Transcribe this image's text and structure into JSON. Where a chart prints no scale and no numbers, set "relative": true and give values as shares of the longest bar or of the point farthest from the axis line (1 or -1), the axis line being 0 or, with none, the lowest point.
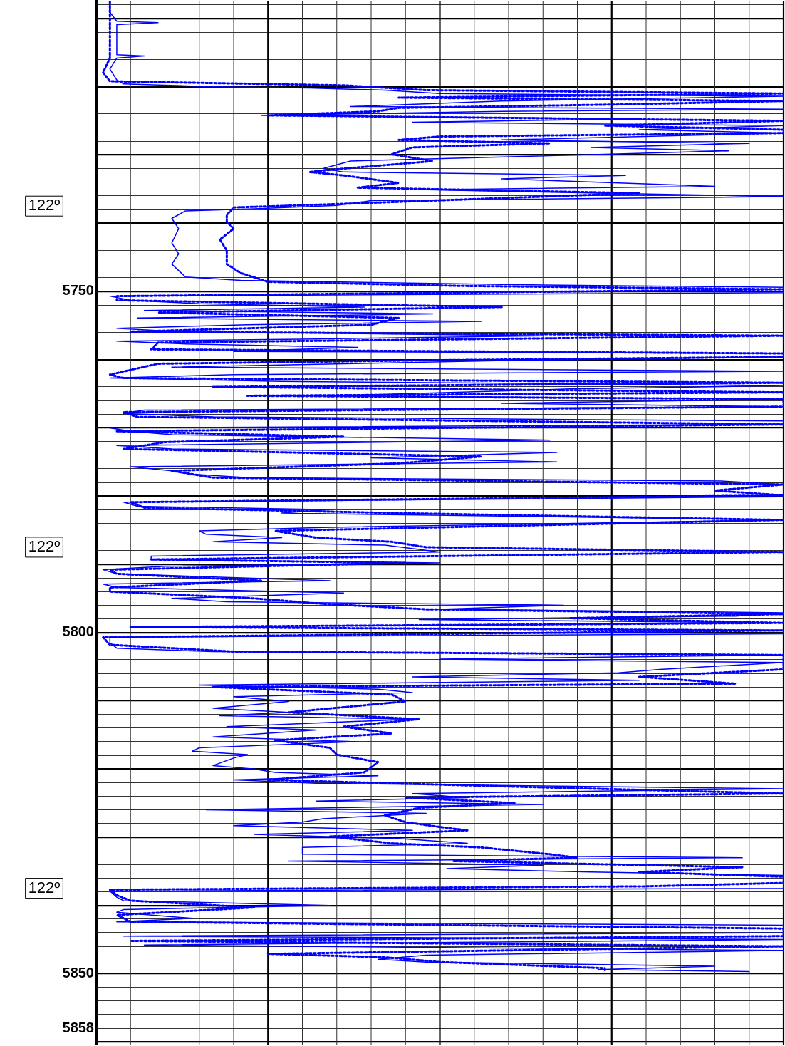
{
  "chart_data": {
    "type": "line",
    "orientation": "horizontal",
    "relative": true,
    "grid": true,
    "legend": false,
    "marker": "none",
    "tick_labels": "y",
    "ylim": [
      5860.4,
      5707.5
    ],
    "yticks": [
      {
        "value": 5708,
        "label": null
      },
      {
        "value": 5710,
        "label": null
      },
      {
        "value": 5712,
        "label": null
      },
      {
        "value": 5714,
        "label": null
      },
      {
        "value": 5716,
        "label": null
      },
      {
        "value": 5718,
        "label": null
      },
      {
        "value": 5720,
        "label": null
      },
      {
        "value": 5722,
        "label": null
      },
      {
        "value": 5724,
        "label": null
      },
      {
        "value": 5726,
        "label": null
      },
      {
        "value": 5728,
        "label": null
      },
      {
        "value": 5730,
        "label": null
      },
      {
        "value": 5732,
        "label": null
      },
      {
        "value": 5734,
        "label": null
      },
      {
        "value": 5736,
        "label": null
      },
      {
        "value": 5738,
        "label": null
      },
      {
        "value": 5740,
        "label": null
      },
      {
        "value": 5742,
        "label": null
      },
      {
        "value": 5744,
        "label": null
      },
      {
        "value": 5746,
        "label": null
      },
      {
        "value": 5748,
        "label": null
      },
      5750,
      {
        "value": 5752,
        "label": null
      },
      {
        "value": 5754,
        "label": null
      },
      {
        "value": 5756,
        "label": null
      },
      {
        "value": 5758,
        "label": null
      },
      {
        "value": 5760,
        "label": null
      },
      {
        "value": 5762,
        "label": null
      },
      {
        "value": 5764,
        "label": null
      },
      {
        "value": 5766,
        "label": null
      },
      {
        "value": 5768,
        "label": null
      },
      {
        "value": 5770,
        "label": null
      },
      {
        "value": 5772,
        "label": null
      },
      {
        "value": 5774,
        "label": null
      },
      {
        "value": 5776,
        "label": null
      },
      {
        "value": 5778,
        "label": null
      },
      {
        "value": 5780,
        "label": null
      },
      {
        "value": 5782,
        "label": null
      },
      {
        "value": 5784,
        "label": null
      },
      {
        "value": 5786,
        "label": null
      },
      {
        "value": 5788,
        "label": null
      },
      {
        "value": 5790,
        "label": null
      },
      {
        "value": 5792,
        "label": null
      },
      {
        "value": 5794,
        "label": null
      },
      {
        "value": 5796,
        "label": null
      },
      {
        "value": 5798,
        "label": null
      },
      5800,
      {
        "value": 5802,
        "label": null
      },
      {
        "value": 5804,
        "label": null
      },
      {
        "value": 5806,
        "label": null
      },
      {
        "value": 5808,
        "label": null
      },
      {
        "value": 5810,
        "label": null
      },
      {
        "value": 5812,
        "label": null
      },
      {
        "value": 5814,
        "label": null
      },
      {
        "value": 5816,
        "label": null
      },
      {
        "value": 5818,
        "label": null
      },
      {
        "value": 5820,
        "label": null
      },
      {
        "value": 5822,
        "label": null
      },
      {
        "value": 5824,
        "label": null
      },
      {
        "value": 5826,
        "label": null
      },
      {
        "value": 5828,
        "label": null
      },
      {
        "value": 5830,
        "label": null
      },
      {
        "value": 5832,
        "label": null
      },
      {
        "value": 5834,
        "label": null
      },
      {
        "value": 5836,
        "label": null
      },
      {
        "value": 5838,
        "label": null
      },
      {
        "value": 5840,
        "label": null
      },
      {
        "value": 5842,
        "label": null
      },
      {
        "value": 5844,
        "label": null
      },
      {
        "value": 5846,
        "label": null
      },
      {
        "value": 5848,
        "label": null
      },
      5850,
      {
        "value": 5852,
        "label": null
      },
      {
        "value": 5854,
        "label": null
      },
      {
        "value": 5856,
        "label": null
      },
      5858,
      {
        "value": 5860,
        "label": null
      }
    ],
    "annotations": [
      "122º",
      "122º",
      "122º"
    ],
    "series": [
      {
        "color": "#0000ff",
        "line_style": "solid",
        "x": [
          5707.5,
          5709.1,
          5710.4,
          5710.6,
          5710.9,
          5712.2,
          5713.8,
          5715.3,
          5715.5,
          5715.8,
          5717.4,
          5719.0,
          5719.6,
          5720.0,
          5720.2,
          5720.5,
          5721.0,
          5721.4,
          5722.1,
          5722.9,
          5723.3,
          5723.6,
          5724.2,
          5724.7,
          5725.2,
          5725.7,
          5726.3,
          5726.8,
          5727.8,
          5728.3,
          5728.9,
          5729.4,
          5729.9,
          5730.9,
          5732.0,
          5732.5,
          5733.0,
          5733.5,
          5734.6,
          5735.1,
          5736.1,
          5736.7,
          5737.4,
          5737.9,
          5738.2,
          5739.3,
          5740.8,
          5742.9,
          5744.5,
          5746.0,
          5747.9,
          5748.4,
          5749.0,
          5749.4,
          5750.2,
          5750.7,
          5751.3,
          5751.8,
          5752.3,
          5752.8,
          5753.3,
          5753.9,
          5754.4,
          5754.9,
          5755.4,
          5755.9,
          5756.5,
          5757.0,
          5757.3,
          5757.7,
          5758.2,
          5758.8,
          5759.1,
          5759.6,
          5760.1,
          5761.1,
          5761.7,
          5762.2,
          5762.7,
          5763.2,
          5763.8,
          5764.3,
          5765.3,
          5765.8,
          5766.4,
          5766.9,
          5767.4,
          5767.9,
          5768.4,
          5769.0,
          5769.5,
          5770.0,
          5770.5,
          5771.0,
          5771.8,
          5772.6,
          5773.1,
          5773.6,
          5774.4,
          5775.0,
          5775.7,
          5776.3,
          5776.8,
          5777.3,
          5777.8,
          5778.3,
          5779.4,
          5780.1,
          5780.9,
          5781.5,
          5782.0,
          5782.5,
          5783.5,
          5784.6,
          5785.1,
          5785.6,
          5786.1,
          5786.7,
          5787.2,
          5788.2,
          5788.8,
          5789.3,
          5789.8,
          5790.3,
          5790.8,
          5791.4,
          5792.4,
          5792.9,
          5793.4,
          5794.2,
          5795.0,
          5795.5,
          5796.0,
          5796.6,
          5797.1,
          5797.6,
          5798.1,
          5798.6,
          5799.2,
          5799.7,
          5800.2,
          5800.7,
          5801.5,
          5802.3,
          5802.8,
          5803.3,
          5803.9,
          5804.4,
          5805.4,
          5805.9,
          5806.5,
          5807.0,
          5807.7,
          5808.3,
          5808.8,
          5809.4,
          5810.1,
          5811.1,
          5811.7,
          5812.2,
          5812.7,
          5813.8,
          5814.3,
          5815.3,
          5816.0,
          5816.9,
          5817.4,
          5817.9,
          5818.4,
          5819.5,
          5820.0,
          5820.5,
          5821.0,
          5821.6,
          5822.1,
          5822.9,
          5823.6,
          5824.2,
          5824.7,
          5825.2,
          5826.0,
          5826.5,
          5827.3,
          5827.8,
          5828.3,
          5829.0,
          5829.6,
          5830.2,
          5830.9,
          5831.5,
          5832.5,
          5833.0,
          5833.5,
          5834.1,
          5834.6,
          5835.1,
          5835.6,
          5836.7,
          5837.5,
          5837.9,
          5838.8,
          5839.3,
          5840.0,
          5840.6,
          5841.0,
          5841.9,
          5842.4,
          5842.9,
          5844.0,
          5844.5,
          5845.0,
          5845.8,
          5846.6,
          5847.3,
          5847.9,
          5848.3,
          5848.9,
          5849.4,
          5849.7,
          5850.0
        ],
        "values": [
          0.02,
          0.02,
          0.03,
          0.09,
          0.03,
          0.03,
          0.03,
          0.03,
          0.07,
          0.03,
          0.02,
          0.03,
          0.04,
          0.17,
          0.31,
          0.42,
          0.5,
          1,
          0.59,
          0.37,
          1,
          0.59,
          0.24,
          0.79,
          0.46,
          1,
          0.79,
          1,
          0.59,
          0.95,
          0.72,
          0.92,
          0.74,
          0.37,
          0.33,
          0.36,
          0.77,
          0.59,
          0.9,
          0.48,
          1,
          0.4,
          0.35,
          0.23,
          0.13,
          0.11,
          0.12,
          0.11,
          0.12,
          0.11,
          0.13,
          0.21,
          0.59,
          1,
          1,
          0.02,
          0.05,
          0.15,
          0.39,
          0.07,
          0.49,
          0.06,
          0.56,
          0.22,
          0.03,
          0.12,
          0.65,
          0.3,
          0.03,
          0.13,
          0.38,
          0.2,
          1,
          1,
          0.61,
          0.11,
          1,
          0.2,
          0.02,
          0.27,
          1,
          0.69,
          0.34,
          1,
          0.59,
          1,
          0.07,
          0.04,
          0.17,
          1,
          1,
          0.02,
          0.05,
          0.11,
          0.66,
          0.03,
          0.11,
          0.67,
          0.4,
          0.67,
          0.05,
          0.11,
          0.14,
          0.22,
          0.91,
          1,
          1,
          1,
          0.04,
          0.06,
          0.34,
          0.27,
          1,
          0.33,
          0.15,
          0.16,
          0.27,
          0.17,
          0.42,
          0.5,
          0.08,
          0.08,
          0.5,
          0.1,
          0.01,
          0.03,
          0.34,
          0.01,
          0.03,
          0.36,
          0.11,
          0.19,
          0.68,
          0.5,
          1,
          0.93,
          0.47,
          1,
          0.05,
          1,
          1,
          0.02,
          0.02,
          0.03,
          0.17,
          1,
          0.5,
          1,
          0.82,
          0.76,
          0.46,
          0.79,
          0.15,
          0.41,
          0.46,
          0.2,
          0.28,
          0.17,
          0.28,
          0.18,
          0.46,
          0.19,
          0.32,
          0.17,
          0.38,
          0.15,
          0.14,
          0.22,
          0.2,
          0.17,
          0.23,
          0.26,
          0.41,
          0.2,
          0.32,
          1,
          0.46,
          0.54,
          0.32,
          0.65,
          0.16,
          0.48,
          0.33,
          0.3,
          0.2,
          0.46,
          0.23,
          0.44,
          0.54,
          0.3,
          0.3,
          0.94,
          0.28,
          0.65,
          0.51,
          0.72,
          1,
          1,
          1,
          0.02,
          0.03,
          0.04,
          0.34,
          0.04,
          0.03,
          0.14,
          0.03,
          1,
          1,
          0.04,
          1,
          0.07,
          1,
          0.48,
          0.41,
          0.48,
          0.9,
          0.73,
          0.95,
          0.95
        ]
      },
      {
        "color": "#0000ff",
        "line_style": "dotted",
        "x": [
          5707.5,
          5709.6,
          5711.7,
          5713.8,
          5715.8,
          5717.9,
          5719.2,
          5719.8,
          5720.5,
          5721.0,
          5721.6,
          5722.1,
          5722.6,
          5723.1,
          5723.6,
          5724.2,
          5725.0,
          5725.7,
          5726.3,
          5726.8,
          5727.3,
          5727.8,
          5728.3,
          5728.9,
          5729.9,
          5730.9,
          5732.0,
          5732.5,
          5733.0,
          5734.1,
          5734.8,
          5735.6,
          5737.2,
          5737.7,
          5738.8,
          5739.8,
          5740.8,
          5742.4,
          5744.0,
          5746.0,
          5747.3,
          5748.6,
          5749.2,
          5749.7,
          5750.7,
          5751.3,
          5752.3,
          5753.1,
          5753.9,
          5754.9,
          5755.9,
          5756.5,
          5757.5,
          5758.5,
          5759.1,
          5759.6,
          5760.1,
          5760.6,
          5762.2,
          5762.7,
          5763.4,
          5764.0,
          5764.8,
          5765.3,
          5765.8,
          5766.9,
          5767.7,
          5768.4,
          5769.5,
          5770.5,
          5771.3,
          5772.1,
          5773.1,
          5774.2,
          5775.2,
          5776.3,
          5777.3,
          5778.3,
          5779.2,
          5779.9,
          5780.9,
          5781.7,
          5782.5,
          5783.5,
          5785.1,
          5786.1,
          5786.7,
          5787.5,
          5788.2,
          5789.3,
          5789.8,
          5790.8,
          5791.4,
          5792.4,
          5793.4,
          5794.0,
          5795.0,
          5795.8,
          5796.6,
          5797.3,
          5797.9,
          5798.6,
          5799.2,
          5799.7,
          5800.7,
          5801.8,
          5802.8,
          5803.3,
          5804.4,
          5805.4,
          5806.5,
          5807.5,
          5808.0,
          5809.1,
          5810.1,
          5811.7,
          5812.7,
          5813.8,
          5814.8,
          5815.8,
          5816.9,
          5817.9,
          5819.0,
          5820.5,
          5821.6,
          5822.6,
          5823.6,
          5824.2,
          5825.0,
          5825.7,
          5826.8,
          5827.8,
          5828.5,
          5829.0,
          5829.9,
          5830.9,
          5831.5,
          5832.5,
          5833.0,
          5833.5,
          5834.4,
          5835.1,
          5835.8,
          5836.7,
          5837.2,
          5837.7,
          5838.5,
          5839.3,
          5840.3,
          5841.4,
          5842.4,
          5843.4,
          5844.5,
          5845.2,
          5846.0,
          5847.1,
          5847.6,
          5848.3,
          5849.2,
          5849.7
        ],
        "values": [
          0.02,
          0.02,
          0.02,
          0.02,
          0.02,
          0.01,
          0.02,
          0.36,
          0.48,
          1,
          0.44,
          1,
          0.76,
          0.44,
          0.41,
          0.25,
          1,
          0.74,
          1,
          1,
          0.5,
          0.44,
          0.66,
          0.46,
          0.43,
          0.49,
          0.36,
          0.31,
          0.36,
          0.44,
          0.38,
          0.79,
          0.35,
          0.2,
          0.19,
          0.19,
          0.2,
          0.18,
          0.19,
          0.19,
          0.21,
          0.25,
          0.53,
          1,
          0.03,
          0.03,
          0.59,
          0.09,
          0.44,
          0.4,
          0.05,
          1,
          0.09,
          0.08,
          1,
          1,
          0.48,
          0.09,
          0.02,
          0.04,
          1,
          0.17,
          1,
          0.22,
          1,
          1,
          0.04,
          0.06,
          1,
          0.03,
          0.36,
          0.1,
          0.04,
          0.56,
          0.44,
          0.11,
          0.17,
          1,
          0.9,
          1,
          0.05,
          0.07,
          0.44,
          1,
          0.26,
          0.32,
          0.43,
          0.48,
          1,
          0.08,
          0.45,
          0.02,
          0.03,
          0.24,
          0.02,
          0.02,
          0.23,
          0.33,
          0.48,
          1,
          0.69,
          1,
          0.05,
          1,
          0.01,
          0.02,
          0.2,
          1,
          1,
          1,
          0.79,
          0.93,
          0.17,
          0.43,
          0.45,
          0.28,
          0.47,
          0.36,
          0.43,
          0.26,
          0.34,
          0.35,
          0.41,
          0.39,
          0.25,
          0.61,
          1,
          0.45,
          0.61,
          0.47,
          0.42,
          0.45,
          0.5,
          0.54,
          0.34,
          0.43,
          0.56,
          0.66,
          0.7,
          0.52,
          0.94,
          0.79,
          1,
          1,
          0.8,
          0.02,
          0.03,
          0.05,
          0.23,
          0.03,
          0.05,
          1,
          1,
          0.05,
          1,
          0.25,
          0.42,
          0.5,
          0.74,
          0.74
        ]
      }
    ]
  }
}
